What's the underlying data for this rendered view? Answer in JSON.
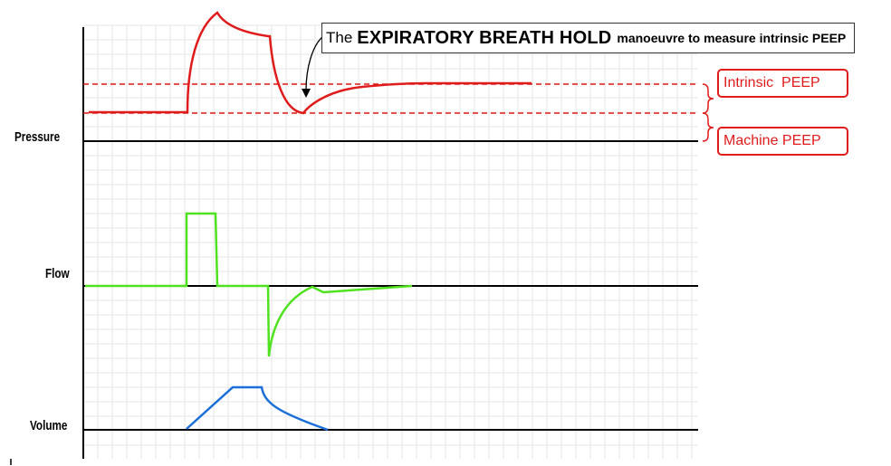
{
  "diagram": {
    "title": {
      "prefix": "The",
      "main": "EXPIRATORY BREATH HOLD",
      "rest": "manoeuvre to measure intrinsic PEEP"
    },
    "labels": {
      "pressure": "Pressure",
      "flow": "Flow",
      "volume": "Volume"
    },
    "annotations": {
      "intrinsic_peep": "Intrinsic  PEEP",
      "machine_peep": "Machine PEEP"
    },
    "colors": {
      "pressure": "#e01b1b",
      "flow": "#4fe21e",
      "volume": "#1a6fd8",
      "grid": "#e6e6e6",
      "baseline": "#000000"
    }
  }
}
